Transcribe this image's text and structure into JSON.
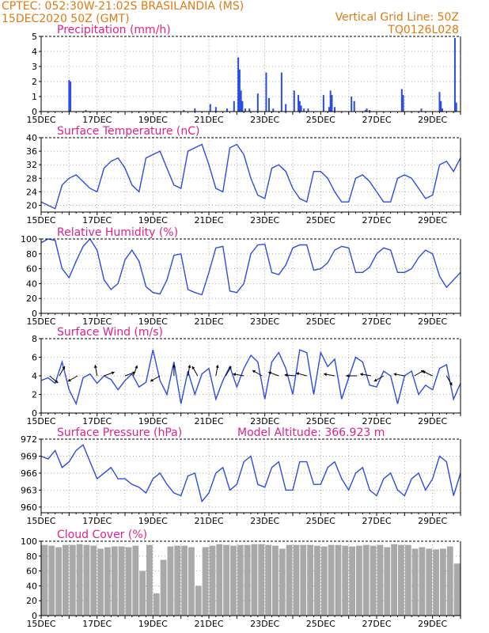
{
  "header": {
    "line1_left": "CPTEC:   052:30W-21:02S   BRASILANDIA (MS)",
    "line2_left": "15DEC2020 50Z (GMT)",
    "line1_right": "Vertical Grid Line: 50Z",
    "line2_right": "TQ0126L028"
  },
  "colors": {
    "line": "#2b4ce0",
    "bar": "#2b4ce0",
    "cloud": "#a9a9a9",
    "title": "#e0208a",
    "header": "#e07a10"
  },
  "chart_data": [
    {
      "type": "bar",
      "title": "Precipitation (mm/h)",
      "ylim": [
        0,
        5
      ],
      "yticks": [
        0,
        1,
        2,
        3,
        4,
        5
      ],
      "x_ticks": [
        "15DEC",
        "17DEC",
        "19DEC",
        "21DEC",
        "23DEC",
        "25DEC",
        "27DEC",
        "29DEC"
      ],
      "x_day_range": [
        0,
        15
      ],
      "series": [
        {
          "x": [
            1.0,
            1.05,
            1.6,
            5.1,
            5.5,
            6.05,
            6.25,
            6.65,
            6.9,
            7.05,
            7.1,
            7.15,
            7.2,
            7.3,
            7.45,
            7.75,
            8.05,
            8.15,
            8.3,
            8.6,
            8.75,
            9.05,
            9.2,
            9.25,
            9.3,
            9.4,
            9.55,
            10.1,
            10.3,
            10.35,
            10.4,
            10.5,
            11.1,
            11.2,
            11.6,
            11.65,
            11.75,
            12.9,
            12.95,
            13.6,
            14.25,
            14.3,
            14.35,
            14.8,
            14.85
          ],
          "values": [
            2.1,
            2.0,
            0.1,
            0.1,
            0.2,
            0.5,
            0.3,
            0.2,
            0.7,
            3.6,
            2.8,
            1.4,
            0.7,
            0.2,
            0.2,
            1.2,
            2.6,
            0.9,
            0.2,
            2.6,
            0.5,
            1.4,
            1.1,
            0.7,
            0.4,
            0.2,
            0.2,
            1.1,
            0.3,
            1.4,
            1.1,
            0.3,
            1.0,
            0.7,
            0.1,
            0.2,
            0.1,
            1.5,
            1.1,
            0.2,
            1.3,
            0.7,
            0.2,
            4.9,
            0.6
          ]
        }
      ]
    },
    {
      "type": "line",
      "title": "Surface Temperature (nC)",
      "ylim": [
        18,
        40
      ],
      "yticks": [
        20,
        24,
        28,
        32,
        36,
        40
      ],
      "x_ticks": [
        "15DEC",
        "17DEC",
        "19DEC",
        "21DEC",
        "23DEC",
        "25DEC",
        "27DEC",
        "29DEC"
      ],
      "x_day_range": [
        0,
        15
      ],
      "series": [
        {
          "x": [
            0.0,
            0.25,
            0.5,
            0.75,
            1.0,
            1.25,
            1.5,
            1.75,
            2.0,
            2.25,
            2.5,
            2.75,
            3.0,
            3.25,
            3.5,
            3.75,
            4.0,
            4.25,
            4.5,
            4.75,
            5.0,
            5.25,
            5.5,
            5.75,
            6.0,
            6.25,
            6.5,
            6.75,
            7.0,
            7.25,
            7.5,
            7.75,
            8.0,
            8.25,
            8.5,
            8.75,
            9.0,
            9.25,
            9.5,
            9.75,
            10.0,
            10.25,
            10.5,
            10.75,
            11.0,
            11.25,
            11.5,
            11.75,
            12.0,
            12.25,
            12.5,
            12.75,
            13.0,
            13.25,
            13.5,
            13.75,
            14.0,
            14.25,
            14.5,
            14.75,
            15.0
          ],
          "values": [
            21,
            20,
            19,
            26,
            28,
            29,
            27,
            25,
            24,
            31,
            33,
            34,
            31,
            26,
            24,
            34,
            35,
            36,
            31,
            26,
            25,
            36,
            37,
            38,
            32,
            25,
            24,
            37,
            38,
            35,
            28,
            23,
            22,
            31,
            32,
            30,
            25,
            22,
            21,
            30,
            30,
            28,
            24,
            21,
            21,
            28,
            29,
            27,
            24,
            21,
            21,
            28,
            29,
            28,
            25,
            22,
            23,
            32,
            33,
            30,
            34
          ]
        }
      ]
    },
    {
      "type": "line",
      "title": "Relative Humidity (%)",
      "ylim": [
        0,
        100
      ],
      "yticks": [
        0,
        20,
        40,
        60,
        80,
        100
      ],
      "x_ticks": [
        "15DEC",
        "17DEC",
        "19DEC",
        "21DEC",
        "23DEC",
        "25DEC",
        "27DEC",
        "29DEC"
      ],
      "x_day_range": [
        0,
        15
      ],
      "series": [
        {
          "x": [
            0.0,
            0.25,
            0.5,
            0.75,
            1.0,
            1.25,
            1.5,
            1.75,
            2.0,
            2.25,
            2.5,
            2.75,
            3.0,
            3.25,
            3.5,
            3.75,
            4.0,
            4.25,
            4.5,
            4.75,
            5.0,
            5.25,
            5.5,
            5.75,
            6.0,
            6.25,
            6.5,
            6.75,
            7.0,
            7.25,
            7.5,
            7.75,
            8.0,
            8.25,
            8.5,
            8.75,
            9.0,
            9.25,
            9.5,
            9.75,
            10.0,
            10.25,
            10.5,
            10.75,
            11.0,
            11.25,
            11.5,
            11.75,
            12.0,
            12.25,
            12.5,
            12.75,
            13.0,
            13.25,
            13.5,
            13.75,
            14.0,
            14.25,
            14.5,
            14.75,
            15.0
          ],
          "values": [
            95,
            100,
            98,
            60,
            48,
            70,
            90,
            100,
            85,
            45,
            32,
            40,
            72,
            85,
            70,
            36,
            28,
            26,
            45,
            78,
            80,
            32,
            28,
            25,
            55,
            88,
            90,
            30,
            28,
            40,
            80,
            92,
            93,
            55,
            52,
            65,
            88,
            92,
            92,
            58,
            60,
            68,
            85,
            90,
            88,
            55,
            55,
            62,
            80,
            88,
            85,
            55,
            55,
            60,
            75,
            85,
            80,
            50,
            35,
            45,
            55
          ]
        }
      ]
    },
    {
      "type": "line",
      "title": "Surface Wind (m/s)",
      "ylim": [
        0,
        8
      ],
      "yticks": [
        0,
        2,
        4,
        6,
        8
      ],
      "x_ticks": [
        "15DEC",
        "17DEC",
        "19DEC",
        "21DEC",
        "23DEC",
        "25DEC",
        "27DEC",
        "29DEC"
      ],
      "x_day_range": [
        0,
        15
      ],
      "series": [
        {
          "x": [
            0.0,
            0.25,
            0.5,
            0.75,
            1.0,
            1.25,
            1.5,
            1.75,
            2.0,
            2.25,
            2.5,
            2.75,
            3.0,
            3.25,
            3.5,
            3.75,
            4.0,
            4.25,
            4.5,
            4.75,
            5.0,
            5.25,
            5.5,
            5.75,
            6.0,
            6.25,
            6.5,
            6.75,
            7.0,
            7.25,
            7.5,
            7.75,
            8.0,
            8.25,
            8.5,
            8.75,
            9.0,
            9.25,
            9.5,
            9.75,
            10.0,
            10.25,
            10.5,
            10.75,
            11.0,
            11.25,
            11.5,
            11.75,
            12.0,
            12.25,
            12.5,
            12.75,
            13.0,
            13.25,
            13.5,
            13.75,
            14.0,
            14.25,
            14.5,
            14.75,
            15.0
          ],
          "values": [
            3.5,
            3.8,
            3.2,
            5.5,
            2.5,
            1.0,
            3.8,
            4.2,
            3.2,
            4.0,
            3.6,
            2.5,
            3.5,
            4.2,
            2.8,
            3.3,
            6.8,
            3.5,
            2.0,
            5.5,
            1.0,
            4.5,
            2.0,
            4.2,
            4.8,
            1.5,
            3.5,
            5.0,
            2.8,
            4.8,
            6.2,
            5.5,
            1.5,
            5.5,
            6.5,
            4.8,
            2.0,
            6.8,
            6.5,
            2.0,
            6.5,
            5.0,
            5.8,
            1.5,
            3.8,
            6.0,
            5.5,
            3.0,
            2.8,
            4.5,
            4.0,
            1.0,
            4.0,
            4.5,
            2.0,
            3.0,
            2.5,
            4.8,
            5.2,
            1.5,
            3.2
          ]
        }
      ],
      "wind_vectors": [
        {
          "x": 0.3,
          "dir": 40
        },
        {
          "x": 0.65,
          "dir": -60
        },
        {
          "x": 1.3,
          "dir": 150
        },
        {
          "x": 2.0,
          "dir": -100
        },
        {
          "x": 2.25,
          "dir": -20
        },
        {
          "x": 3.0,
          "dir": -20
        },
        {
          "x": 3.3,
          "dir": -70
        },
        {
          "x": 4.25,
          "dir": 150
        },
        {
          "x": 4.75,
          "dir": -90
        },
        {
          "x": 5.25,
          "dir": -80
        },
        {
          "x": 5.6,
          "dir": -120
        },
        {
          "x": 6.25,
          "dir": -80
        },
        {
          "x": 6.6,
          "dir": -60
        },
        {
          "x": 7.25,
          "dir": -170
        },
        {
          "x": 7.9,
          "dir": -150
        },
        {
          "x": 8.5,
          "dir": -160
        },
        {
          "x": 9.1,
          "dir": -175
        },
        {
          "x": 9.5,
          "dir": -165
        },
        {
          "x": 10.5,
          "dir": -170
        },
        {
          "x": 11.3,
          "dir": -180
        },
        {
          "x": 11.8,
          "dir": -170
        },
        {
          "x": 12.25,
          "dir": 150
        },
        {
          "x": 13.0,
          "dir": -170
        },
        {
          "x": 13.35,
          "dir": -30
        },
        {
          "x": 14.0,
          "dir": -155
        },
        {
          "x": 14.5,
          "dir": 60
        }
      ]
    },
    {
      "type": "line",
      "title": "Surface Pressure (hPa)",
      "annotation": "Model Altitude: 366.923 m",
      "ylim": [
        959,
        972
      ],
      "yticks": [
        960,
        963,
        966,
        969,
        972
      ],
      "x_ticks": [
        "15DEC",
        "17DEC",
        "19DEC",
        "21DEC",
        "23DEC",
        "25DEC",
        "27DEC",
        "29DEC"
      ],
      "x_day_range": [
        0,
        15
      ],
      "series": [
        {
          "x": [
            0.0,
            0.25,
            0.5,
            0.75,
            1.0,
            1.25,
            1.5,
            1.75,
            2.0,
            2.25,
            2.5,
            2.75,
            3.0,
            3.25,
            3.5,
            3.75,
            4.0,
            4.25,
            4.5,
            4.75,
            5.0,
            5.25,
            5.5,
            5.75,
            6.0,
            6.25,
            6.5,
            6.75,
            7.0,
            7.25,
            7.5,
            7.75,
            8.0,
            8.25,
            8.5,
            8.75,
            9.0,
            9.25,
            9.5,
            9.75,
            10.0,
            10.25,
            10.5,
            10.75,
            11.0,
            11.25,
            11.5,
            11.75,
            12.0,
            12.25,
            12.5,
            12.75,
            13.0,
            13.25,
            13.5,
            13.75,
            14.0,
            14.25,
            14.5,
            14.75,
            15.0
          ],
          "values": [
            969,
            968.5,
            970,
            967,
            968,
            970,
            971,
            968,
            965,
            966,
            967,
            965,
            965,
            964,
            963.5,
            962.5,
            965,
            966,
            964,
            962.5,
            962,
            965.5,
            966,
            961,
            962.5,
            966,
            967,
            963,
            964,
            968,
            969,
            964,
            963.5,
            967,
            968,
            963,
            963,
            968,
            968,
            964,
            964,
            967,
            968,
            965,
            963,
            966,
            967,
            963,
            962,
            965,
            966,
            963,
            962,
            965,
            966,
            963,
            965,
            969,
            968,
            962,
            966
          ]
        }
      ]
    },
    {
      "type": "bar",
      "title": "Cloud Cover (%)",
      "ylim": [
        0,
        100
      ],
      "yticks": [
        0,
        20,
        40,
        60,
        80,
        100
      ],
      "x_ticks": [
        "15DEC",
        "17DEC",
        "19DEC",
        "21DEC",
        "23DEC",
        "25DEC",
        "27DEC",
        "29DEC"
      ],
      "x_day_range": [
        0,
        15
      ],
      "series": [
        {
          "x": [
            0.0,
            0.25,
            0.5,
            0.75,
            1.0,
            1.25,
            1.5,
            1.75,
            2.0,
            2.25,
            2.5,
            2.75,
            3.0,
            3.25,
            3.5,
            3.75,
            4.0,
            4.25,
            4.5,
            4.75,
            5.0,
            5.25,
            5.5,
            5.75,
            6.0,
            6.25,
            6.5,
            6.75,
            7.0,
            7.25,
            7.5,
            7.75,
            8.0,
            8.25,
            8.5,
            8.75,
            9.0,
            9.25,
            9.5,
            9.75,
            10.0,
            10.25,
            10.5,
            10.75,
            11.0,
            11.25,
            11.5,
            11.75,
            12.0,
            12.25,
            12.5,
            12.75,
            13.0,
            13.25,
            13.5,
            13.75,
            14.0,
            14.25,
            14.5,
            14.75
          ],
          "values": [
            95,
            94,
            92,
            95,
            95,
            96,
            95,
            94,
            90,
            92,
            93,
            93,
            92,
            94,
            60,
            95,
            30,
            75,
            93,
            94,
            94,
            92,
            40,
            92,
            94,
            96,
            95,
            94,
            95,
            95,
            96,
            96,
            95,
            94,
            90,
            95,
            95,
            95,
            95,
            94,
            93,
            95,
            95,
            94,
            93,
            94,
            95,
            94,
            95,
            92,
            96,
            95,
            95,
            90,
            92,
            90,
            89,
            90,
            93,
            70
          ]
        }
      ]
    }
  ]
}
